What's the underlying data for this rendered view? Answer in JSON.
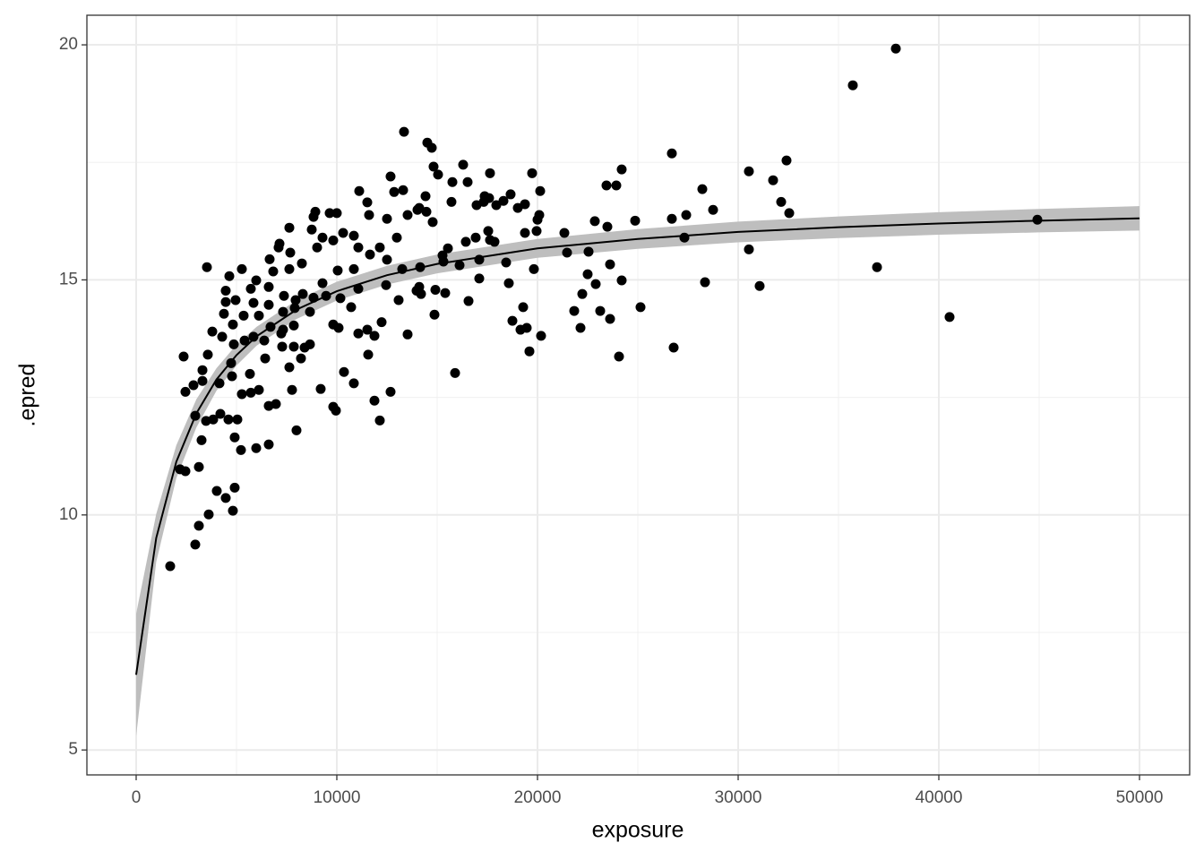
{
  "chart_data": {
    "type": "scatter",
    "x_label": "exposure",
    "y_label": ".epred",
    "xlim": [
      -2455,
      52500
    ],
    "ylim": [
      4.47,
      20.63
    ],
    "xticks": [
      0,
      10000,
      20000,
      30000,
      40000,
      50000
    ],
    "yticks": [
      5,
      10,
      15,
      20
    ],
    "grid": true,
    "color": "#000000",
    "fit_color": "#000000",
    "ribbon_color": "#bebebe",
    "x": [
      1696,
      2946,
      3125,
      3616,
      4821,
      4910,
      4018,
      4464,
      2187,
      2455,
      3125,
      3259,
      5223,
      5982,
      6607,
      4910,
      7990,
      2946,
      3482,
      3839,
      4196,
      4598,
      5044,
      9955,
      9821,
      12142,
      11875,
      12678,
      2455,
      2857,
      3304,
      4152,
      4776,
      5268,
      5714,
      6116,
      6607,
      6964,
      7768,
      9196,
      10848,
      10357,
      3304,
      3571,
      2366,
      4732,
      5669,
      6429,
      7634,
      8214,
      8393,
      8661,
      7277,
      7857,
      4866,
      5402,
      5848,
      6384,
      7232,
      4286,
      3795,
      4821,
      5357,
      6116,
      6696,
      7321,
      7857,
      4375,
      4464,
      4955,
      5848,
      6607,
      7321,
      7902,
      8661,
      9821,
      10089,
      10714,
      11071,
      11518,
      11875,
      12232,
      11563,
      4464,
      4643,
      5714,
      6607,
      7366,
      7946,
      8304,
      8839,
      9464,
      10178,
      11071,
      12455,
      13080,
      13973,
      14911,
      16563,
      18571,
      19152,
      19464,
      20178,
      19598,
      15893,
      13527,
      14866,
      3527,
      5268,
      5982,
      6830,
      7634,
      8259,
      9286,
      10045,
      10848,
      11652,
      12500,
      13259,
      14152,
      15313,
      16116,
      17098,
      18437,
      19821,
      21473,
      22545,
      6652,
      7098,
      7679,
      9018,
      9821,
      10313,
      11071,
      12142,
      12991,
      7143,
      7634,
      8750,
      9286,
      10848,
      11607,
      11518,
      12500,
      8839,
      8929,
      9643,
      9999,
      14107,
      14464,
      14777,
      16429,
      16920,
      17545,
      17857,
      19375,
      19955,
      20000,
      20089,
      21339,
      22857,
      23482,
      24866,
      26696,
      27321,
      27411,
      28750,
      30535,
      32545,
      15714,
      16964,
      17321,
      17946,
      18304,
      19018,
      19375,
      18660,
      20134,
      16518,
      17589,
      17366,
      15759,
      14420,
      14018,
      12857,
      13304,
      11116,
      12678,
      15045,
      14821,
      16295,
      19732,
      17633,
      14509,
      14732,
      13348,
      24196,
      23437,
      23928,
      26696,
      28214,
      30535,
      31741,
      32143,
      32410,
      22500,
      21830,
      22232,
      22143,
      22902,
      23125,
      23616,
      23616,
      24196,
      24062,
      25134,
      26786,
      28348,
      31071,
      35714,
      37857,
      36920,
      40535,
      44911,
      17633,
      19286,
      18750,
      17098,
      15401,
      14107,
      14196,
      15536,
      15268,
      13527
    ],
    "values": [
      8.91,
      9.37,
      9.77,
      10.01,
      10.09,
      10.58,
      10.51,
      10.36,
      10.97,
      10.93,
      11.02,
      11.59,
      11.38,
      11.42,
      11.5,
      11.65,
      11.8,
      12.11,
      12.0,
      12.03,
      12.15,
      12.03,
      12.03,
      12.22,
      12.3,
      12.01,
      12.43,
      12.62,
      12.62,
      12.76,
      12.85,
      12.8,
      12.95,
      12.57,
      12.6,
      12.66,
      12.32,
      12.36,
      12.66,
      12.68,
      12.8,
      13.04,
      13.08,
      13.41,
      13.37,
      13.23,
      13.0,
      13.33,
      13.14,
      13.33,
      13.56,
      13.63,
      13.58,
      13.58,
      13.63,
      13.71,
      13.79,
      13.71,
      13.86,
      13.79,
      13.9,
      14.05,
      14.24,
      14.24,
      14.0,
      13.94,
      14.03,
      14.28,
      14.53,
      14.57,
      14.51,
      14.47,
      14.32,
      14.4,
      14.32,
      14.05,
      13.98,
      14.42,
      13.86,
      13.94,
      13.81,
      14.1,
      13.41,
      14.77,
      15.08,
      14.81,
      14.85,
      14.66,
      14.57,
      14.7,
      14.62,
      14.66,
      14.61,
      14.81,
      14.89,
      14.57,
      14.77,
      14.79,
      14.55,
      14.93,
      13.94,
      13.98,
      13.81,
      13.48,
      13.02,
      13.84,
      14.26,
      15.27,
      15.23,
      14.99,
      15.18,
      15.23,
      15.35,
      14.93,
      15.2,
      15.23,
      15.54,
      15.43,
      15.23,
      15.27,
      15.39,
      15.31,
      15.43,
      15.37,
      15.23,
      15.58,
      15.6,
      15.44,
      15.69,
      15.58,
      15.69,
      15.84,
      16.0,
      15.69,
      15.69,
      15.9,
      15.77,
      16.11,
      16.07,
      15.9,
      15.94,
      16.38,
      16.65,
      16.3,
      16.34,
      16.45,
      16.42,
      16.42,
      16.53,
      16.45,
      16.23,
      15.81,
      15.9,
      16.04,
      15.81,
      16.0,
      16.04,
      16.28,
      16.38,
      16.0,
      16.25,
      16.13,
      16.26,
      16.3,
      15.9,
      16.38,
      16.49,
      15.65,
      16.42,
      16.66,
      16.59,
      16.66,
      16.59,
      16.68,
      16.53,
      16.61,
      16.82,
      16.89,
      17.08,
      16.74,
      16.78,
      17.08,
      16.78,
      16.49,
      16.87,
      16.91,
      16.89,
      17.2,
      17.24,
      17.41,
      17.45,
      17.27,
      17.27,
      17.92,
      17.81,
      18.15,
      17.35,
      17.01,
      17.01,
      17.69,
      16.93,
      17.31,
      17.12,
      16.66,
      17.54,
      15.12,
      14.34,
      14.7,
      13.98,
      14.91,
      14.34,
      15.33,
      14.17,
      14.99,
      13.37,
      14.42,
      13.56,
      14.95,
      14.87,
      19.14,
      19.92,
      15.27,
      14.21,
      16.28,
      15.85,
      14.42,
      14.13,
      15.03,
      14.72,
      14.85,
      14.7,
      15.67,
      15.52,
      16.38
    ],
    "fit": {
      "x": [
        0,
        1000,
        2000,
        3000,
        4000,
        5000,
        6000,
        8000,
        10000,
        12500,
        15000,
        20000,
        25000,
        30000,
        35000,
        40000,
        45000,
        50000
      ],
      "values": [
        6.6,
        9.51,
        11.13,
        12.16,
        12.88,
        13.4,
        13.8,
        14.37,
        14.76,
        15.1,
        15.34,
        15.67,
        15.87,
        16.02,
        16.12,
        16.2,
        16.26,
        16.31
      ],
      "lower": [
        5.3,
        9.0,
        10.78,
        11.86,
        12.64,
        13.18,
        13.6,
        14.17,
        14.56,
        14.9,
        15.14,
        15.47,
        15.66,
        15.8,
        15.89,
        15.96,
        16.01,
        16.05
      ],
      "upper": [
        7.9,
        10.02,
        11.48,
        12.46,
        13.12,
        13.62,
        14.0,
        14.57,
        14.96,
        15.3,
        15.54,
        15.87,
        16.08,
        16.24,
        16.35,
        16.44,
        16.51,
        16.57
      ]
    }
  }
}
